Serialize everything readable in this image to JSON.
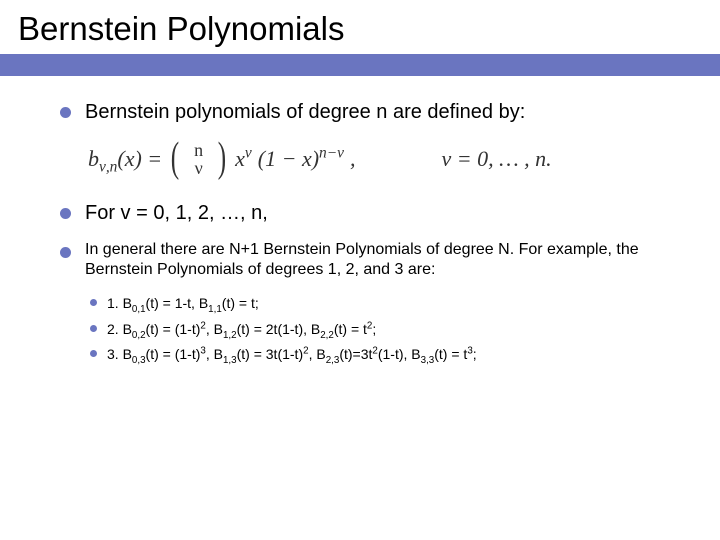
{
  "title": "Bernstein Polynomials",
  "accent_color": "#6a75c0",
  "background_color": "#ffffff",
  "text_color": "#000000",
  "bullets": [
    {
      "text": "Bernstein polynomials of degree n are defined by:",
      "fontsize": 20
    },
    {
      "text": "For v = 0, 1, 2, …, n,",
      "fontsize": 20
    },
    {
      "text": "In general there are N+1 Bernstein Polynomials of degree N.  For example, the Bernstein Polynomials of degrees 1, 2, and 3 are:",
      "fontsize": 16
    }
  ],
  "formula": {
    "lhs_func": "b",
    "lhs_sub": "ν,n",
    "lhs_var": "(x)",
    "binom_top": "n",
    "binom_bot": "ν",
    "term1_base": "x",
    "term1_exp": "ν",
    "term2_base": "(1 − x)",
    "term2_exp": "n−ν",
    "rhs_text": "ν = 0, … , n.",
    "font_family": "Times New Roman",
    "fontsize": 22
  },
  "sub_bullets": [
    {
      "label": "1.  ",
      "content_html": "B<sub>0,1</sub>(t) = 1-t, B<sub>1,1</sub>(t) = t;"
    },
    {
      "label": "2.  ",
      "content_html": "B<sub>0,2</sub>(t) = (1-t)<sup>2</sup>, B<sub>1,2</sub>(t) = 2t(1-t), B<sub>2,2</sub>(t) = t<sup>2</sup>;"
    },
    {
      "label": "3.  ",
      "content_html": "B<sub>0,3</sub>(t) = (1-t)<sup>3</sup>, B<sub>1,3</sub>(t) = 3t(1-t)<sup>2</sup>, B<sub>2,3</sub>(t)=3t<sup>2</sup>(1-t), B<sub>3,3</sub>(t) = t<sup>3</sup>;"
    }
  ],
  "sub_bullet_fontsize": 14
}
